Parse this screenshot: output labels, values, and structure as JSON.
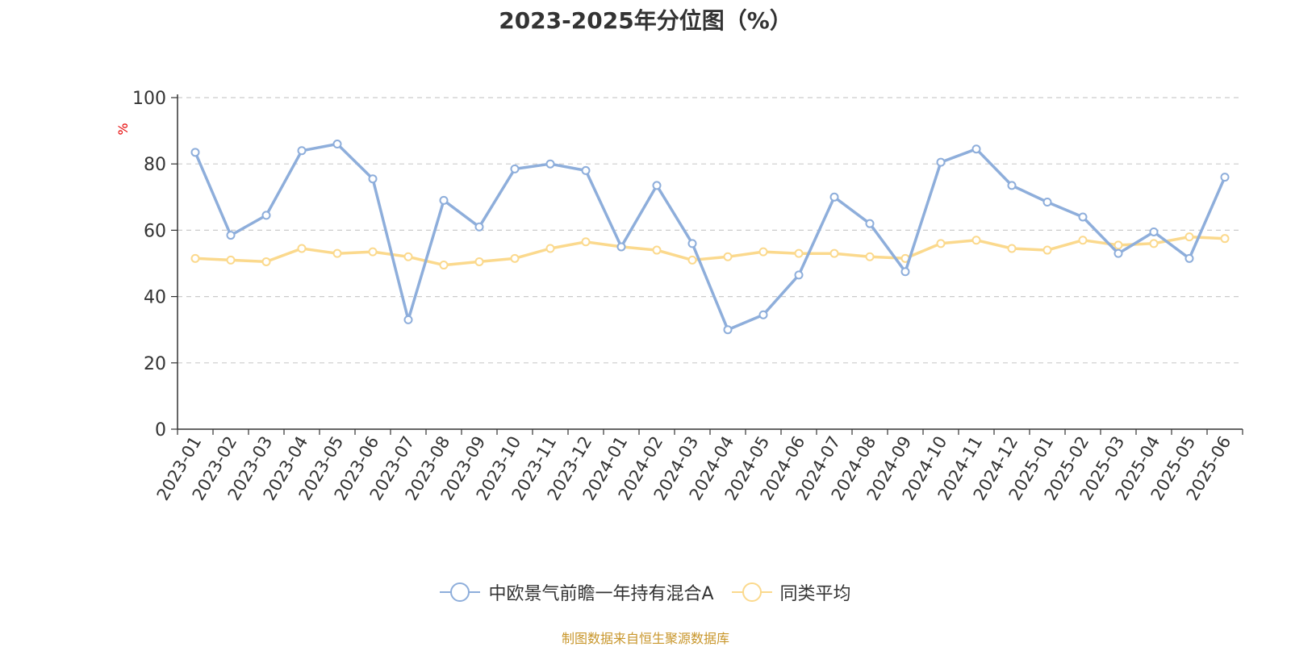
{
  "chart_data": {
    "type": "line",
    "title": "2023-2025年分位图（%）",
    "ylabel": "%",
    "xlabel": "",
    "ylim": [
      0,
      100
    ],
    "yticks": [
      0,
      20,
      40,
      60,
      80,
      100
    ],
    "grid": true,
    "legend_position": "bottom",
    "categories": [
      "2023-01",
      "2023-02",
      "2023-03",
      "2023-04",
      "2023-05",
      "2023-06",
      "2023-07",
      "2023-08",
      "2023-09",
      "2023-10",
      "2023-11",
      "2023-12",
      "2024-01",
      "2024-02",
      "2024-03",
      "2024-04",
      "2024-05",
      "2024-06",
      "2024-07",
      "2024-08",
      "2024-09",
      "2024-10",
      "2024-11",
      "2024-12",
      "2025-01",
      "2025-02",
      "2025-03",
      "2025-04",
      "2025-05",
      "2025-06"
    ],
    "series": [
      {
        "name": "中欧景气前瞻一年持有混合A",
        "color": "#8eaedb",
        "values": [
          83.5,
          58.5,
          64.5,
          84,
          86,
          75.5,
          33,
          69,
          61,
          78.5,
          80,
          78,
          55,
          73.5,
          56,
          30,
          34.5,
          46.5,
          70,
          62,
          47.5,
          80.5,
          84.5,
          73.5,
          68.5,
          64,
          53,
          59.5,
          51.5,
          76
        ]
      },
      {
        "name": "同类平均",
        "color": "#fbd98d",
        "values": [
          51.5,
          51,
          50.5,
          54.5,
          53,
          53.5,
          52,
          49.5,
          50.5,
          51.5,
          54.5,
          56.5,
          55,
          54,
          51,
          52,
          53.5,
          53,
          53,
          52,
          51.5,
          56,
          57,
          54.5,
          54,
          57,
          55.5,
          56,
          58,
          57.5
        ]
      }
    ]
  },
  "source_text": "制图数据来自恒生聚源数据库"
}
